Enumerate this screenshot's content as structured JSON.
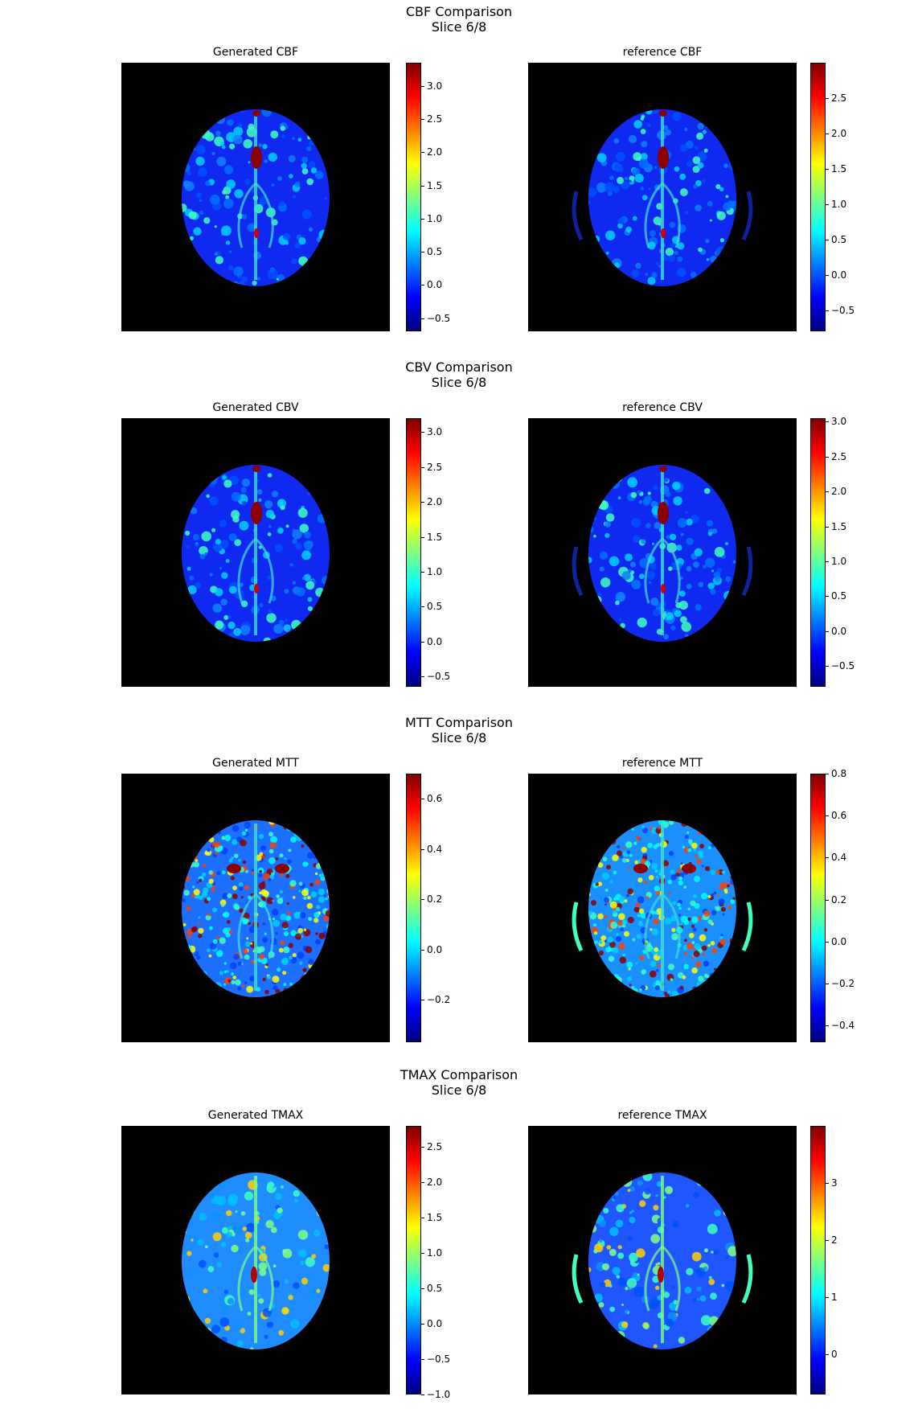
{
  "colormap": "jet",
  "colormap_stops": [
    "#00007f",
    "#0000ff",
    "#007fff",
    "#00ffff",
    "#7fff7f",
    "#ffff00",
    "#ff7f00",
    "#ff0000",
    "#7f0000"
  ],
  "chart_data": [
    {
      "type": "heatmap",
      "title": "CBF Comparison",
      "subtitle": "Slice 6/8",
      "panels": [
        {
          "title": "Generated CBF",
          "colorbar": {
            "range": [
              -0.7,
              3.35
            ],
            "ticks": [
              -0.5,
              0.0,
              0.5,
              1.0,
              1.5,
              2.0,
              2.5,
              3.0
            ],
            "tick_labels": [
              "−0.5",
              "0.0",
              "0.5",
              "1.0",
              "1.5",
              "2.0",
              "2.5",
              "3.0"
            ]
          }
        },
        {
          "title": "reference CBF",
          "colorbar": {
            "range": [
              -0.8,
              3.0
            ],
            "ticks": [
              -0.5,
              0.0,
              0.5,
              1.0,
              1.5,
              2.0,
              2.5
            ],
            "tick_labels": [
              "−0.5",
              "0.0",
              "0.5",
              "1.0",
              "1.5",
              "2.0",
              "2.5"
            ]
          }
        }
      ]
    },
    {
      "type": "heatmap",
      "title": "CBV Comparison",
      "subtitle": "Slice 6/8",
      "panels": [
        {
          "title": "Generated CBV",
          "colorbar": {
            "range": [
              -0.65,
              3.2
            ],
            "ticks": [
              -0.5,
              0.0,
              0.5,
              1.0,
              1.5,
              2.0,
              2.5,
              3.0
            ],
            "tick_labels": [
              "−0.5",
              "0.0",
              "0.5",
              "1.0",
              "1.5",
              "2.0",
              "2.5",
              "3.0"
            ]
          }
        },
        {
          "title": "reference CBV",
          "colorbar": {
            "range": [
              -0.8,
              3.05
            ],
            "ticks": [
              -0.5,
              0.0,
              0.5,
              1.0,
              1.5,
              2.0,
              2.5,
              3.0
            ],
            "tick_labels": [
              "−0.5",
              "0.0",
              "0.5",
              "1.0",
              "1.5",
              "2.0",
              "2.5",
              "3.0"
            ]
          }
        }
      ]
    },
    {
      "type": "heatmap",
      "title": "MTT Comparison",
      "subtitle": "Slice 6/8",
      "panels": [
        {
          "title": "Generated MTT",
          "colorbar": {
            "range": [
              -0.37,
              0.7
            ],
            "ticks": [
              -0.2,
              0.0,
              0.2,
              0.4,
              0.6
            ],
            "tick_labels": [
              "−0.2",
              "0.0",
              "0.2",
              "0.4",
              "0.6"
            ]
          }
        },
        {
          "title": "reference MTT",
          "colorbar": {
            "range": [
              -0.48,
              0.8
            ],
            "ticks": [
              -0.4,
              -0.2,
              0.0,
              0.2,
              0.4,
              0.6,
              0.8
            ],
            "tick_labels": [
              "−0.4",
              "−0.2",
              "0.0",
              "0.2",
              "0.4",
              "0.6",
              "0.8"
            ]
          }
        }
      ]
    },
    {
      "type": "heatmap",
      "title": "TMAX Comparison",
      "subtitle": "Slice 6/8",
      "panels": [
        {
          "title": "Generated TMAX",
          "colorbar": {
            "range": [
              -1.0,
              2.8
            ],
            "ticks": [
              -1.0,
              -0.5,
              0.0,
              0.5,
              1.0,
              1.5,
              2.0,
              2.5
            ],
            "tick_labels": [
              "−1.0",
              "−0.5",
              "0.0",
              "0.5",
              "1.0",
              "1.5",
              "2.0",
              "2.5"
            ]
          }
        },
        {
          "title": "reference TMAX",
          "colorbar": {
            "range": [
              -0.7,
              4.0
            ],
            "ticks": [
              0,
              1,
              2,
              3
            ],
            "tick_labels": [
              "0",
              "1",
              "2",
              "3"
            ]
          }
        }
      ]
    }
  ]
}
